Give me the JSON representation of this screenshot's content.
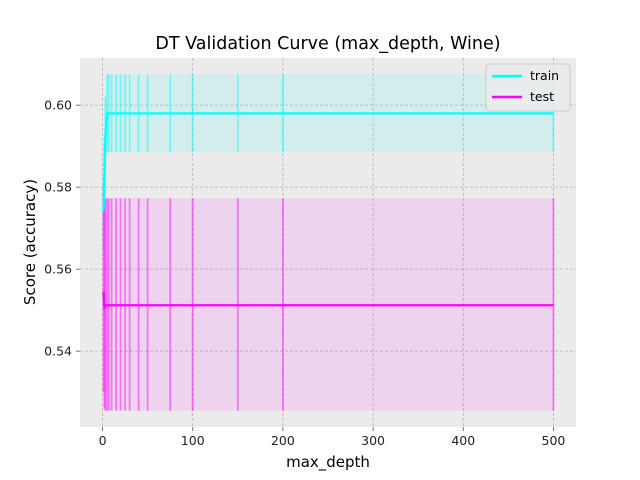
{
  "chart_data": {
    "type": "line",
    "title": "DT Validation Curve (max_depth, Wine)",
    "xlabel": "max_depth",
    "ylabel": "Score (accuracy)",
    "xlim": [
      -25,
      525
    ],
    "ylim": [
      0.5215,
      0.6115
    ],
    "xticks": [
      0,
      100,
      200,
      300,
      400,
      500
    ],
    "yticks": [
      0.54,
      0.56,
      0.58,
      0.6
    ],
    "grid": true,
    "legend_position": "top-right",
    "x": [
      1,
      2,
      3,
      5,
      7,
      10,
      15,
      20,
      25,
      30,
      40,
      50,
      75,
      100,
      150,
      200,
      500
    ],
    "series": [
      {
        "name": "train",
        "color": "#00ffff",
        "values": [
          0.574,
          0.583,
          0.592,
          0.598,
          0.598,
          0.598,
          0.598,
          0.598,
          0.598,
          0.598,
          0.598,
          0.598,
          0.598,
          0.598,
          0.598,
          0.598,
          0.598
        ],
        "lower": [
          0.565,
          0.575,
          0.582,
          0.5885,
          0.5885,
          0.5885,
          0.5885,
          0.5885,
          0.5885,
          0.5885,
          0.5885,
          0.5885,
          0.5885,
          0.5885,
          0.5885,
          0.5885,
          0.5885
        ],
        "upper": [
          0.583,
          0.592,
          0.602,
          0.6075,
          0.6075,
          0.6075,
          0.6075,
          0.6075,
          0.6075,
          0.6075,
          0.6075,
          0.6075,
          0.6075,
          0.6075,
          0.6075,
          0.6075,
          0.6075
        ]
      },
      {
        "name": "test",
        "color": "#ff00ff",
        "values": [
          0.5545,
          0.5505,
          0.5512,
          0.5512,
          0.5512,
          0.5512,
          0.5512,
          0.5512,
          0.5512,
          0.5512,
          0.5512,
          0.5512,
          0.5512,
          0.5512,
          0.5512,
          0.5512,
          0.5512
        ],
        "lower": [
          0.53,
          0.526,
          0.5255,
          0.5255,
          0.5255,
          0.5255,
          0.5255,
          0.5255,
          0.5255,
          0.5255,
          0.5255,
          0.5255,
          0.5255,
          0.5255,
          0.5255,
          0.5255,
          0.5255
        ],
        "upper": [
          0.579,
          0.575,
          0.5773,
          0.5773,
          0.5773,
          0.5773,
          0.5773,
          0.5773,
          0.5773,
          0.5773,
          0.5773,
          0.5773,
          0.5773,
          0.5773,
          0.5773,
          0.5773,
          0.5773
        ]
      }
    ]
  }
}
